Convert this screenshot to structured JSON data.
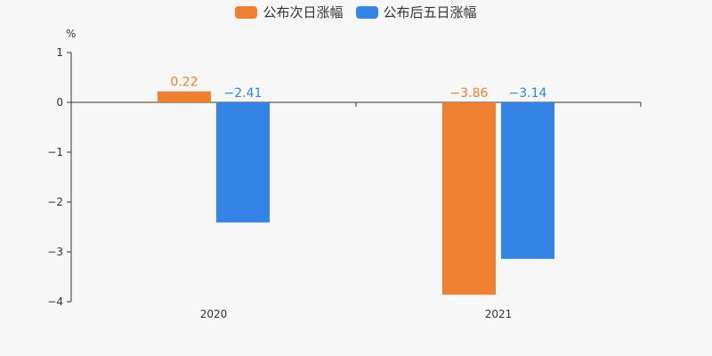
{
  "chart_data": {
    "type": "bar",
    "categories": [
      "2020",
      "2021"
    ],
    "series": [
      {
        "name": "公布次日涨幅",
        "values": [
          0.22,
          -3.86
        ],
        "color": "#ef7f31",
        "labels": [
          "0.22",
          "−3.86"
        ]
      },
      {
        "name": "公布后五日涨幅",
        "values": [
          -2.41,
          -3.14
        ],
        "color": "#3483e5",
        "labels": [
          "−2.41",
          "−3.14"
        ]
      }
    ],
    "ylabel": "%",
    "ylim": [
      -4,
      1
    ],
    "yticks": [
      1,
      0,
      -1,
      -2,
      -3,
      -4
    ],
    "ytick_labels": [
      "1",
      "0",
      "−1",
      "−2",
      "−3",
      "−4"
    ],
    "grid": false,
    "legend_position": "top-center"
  }
}
